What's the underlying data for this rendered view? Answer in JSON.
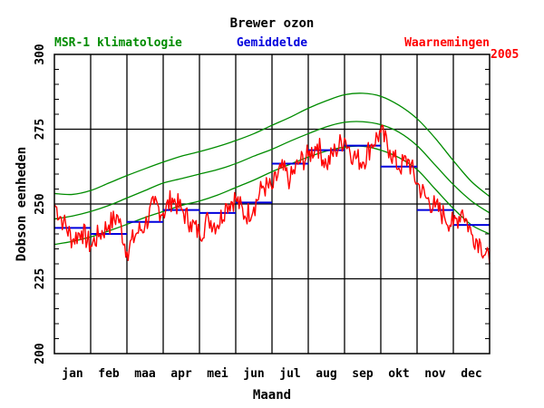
{
  "chart_data": {
    "type": "line",
    "title": "Brewer ozon",
    "year_label": "2005",
    "xlabel": "Maand",
    "ylabel": "Dobson eenheden",
    "ylim": [
      200,
      300
    ],
    "xlim": [
      0,
      12
    ],
    "x_unit": "month (0 = 1 Jan, 12 = 31 Dec)",
    "yticks": [
      200,
      225,
      250,
      275,
      300
    ],
    "month_labels": [
      "jan",
      "feb",
      "maa",
      "apr",
      "mei",
      "jun",
      "jul",
      "aug",
      "sep",
      "okt",
      "nov",
      "dec"
    ],
    "grid": true,
    "legend": [
      {
        "key": "clim",
        "label": "MSR-1 klimatologie",
        "color": "#008c00",
        "position": "top-left"
      },
      {
        "key": "mean",
        "label": "Gemiddelde",
        "color": "#0000dd",
        "position": "top-center"
      },
      {
        "key": "obs",
        "label": "Waarnemingen",
        "color": "#ff0000",
        "position": "top-right"
      }
    ],
    "series": [
      {
        "name": "MSR-1 klimatologie",
        "role": "upper",
        "color": "#008c00",
        "x": [
          0,
          0.5,
          1,
          1.5,
          2,
          2.5,
          3,
          3.5,
          4,
          4.5,
          5,
          5.5,
          6,
          6.5,
          7,
          7.5,
          8,
          8.5,
          9,
          9.5,
          10,
          10.5,
          11,
          11.5,
          12
        ],
        "y": [
          253.5,
          253.2,
          254.5,
          257,
          259.5,
          261.8,
          264,
          266,
          267.5,
          269.2,
          271.2,
          273.5,
          276.3,
          279,
          282,
          284.5,
          286.5,
          287,
          286,
          283,
          278.5,
          272,
          264.5,
          257.5,
          252.5
        ]
      },
      {
        "name": "MSR-1 klimatologie",
        "role": "middle",
        "color": "#008c00",
        "x": [
          0,
          0.5,
          1,
          1.5,
          2,
          2.5,
          3,
          3.5,
          4,
          4.5,
          5,
          5.5,
          6,
          6.5,
          7,
          7.5,
          8,
          8.5,
          9,
          9.5,
          10,
          10.5,
          11,
          11.5,
          12
        ],
        "y": [
          245,
          246,
          247.5,
          249.5,
          252,
          254.5,
          257,
          258.5,
          260,
          261.5,
          263.5,
          266,
          268.3,
          271,
          273.5,
          275.8,
          277.3,
          277.5,
          276.5,
          274,
          269.5,
          263,
          256.5,
          251,
          247
        ]
      },
      {
        "name": "MSR-1 klimatologie",
        "role": "lower",
        "color": "#008c00",
        "x": [
          0,
          0.5,
          1,
          1.5,
          2,
          2.5,
          3,
          3.5,
          4,
          4.5,
          5,
          5.5,
          6,
          6.5,
          7,
          7.5,
          8,
          8.5,
          9,
          9.5,
          10,
          10.5,
          11,
          11.5,
          12
        ],
        "y": [
          236.5,
          237.5,
          239,
          241,
          243.2,
          245.5,
          247.5,
          249.5,
          251,
          253,
          255.5,
          258,
          260.8,
          263.3,
          265.7,
          267.7,
          269,
          269.3,
          268,
          265.5,
          261.5,
          255,
          248.5,
          243,
          240
        ]
      },
      {
        "name": "Gemiddelde",
        "role": "monthly-mean",
        "color": "#0000dd",
        "months": [
          1,
          2,
          3,
          4,
          5,
          6,
          7,
          8,
          9,
          10,
          11,
          12
        ],
        "values": [
          242,
          240,
          244,
          248,
          247,
          250.5,
          263.5,
          268,
          269.5,
          262.5,
          248,
          243
        ]
      },
      {
        "name": "Waarnemingen",
        "role": "daily-observations",
        "color": "#ff0000",
        "x": [
          0,
          0.25,
          0.5,
          0.75,
          1,
          1.25,
          1.5,
          1.75,
          2,
          2.25,
          2.5,
          2.75,
          3,
          3.25,
          3.5,
          3.75,
          4,
          4.25,
          4.5,
          4.75,
          5,
          5.25,
          5.5,
          5.75,
          6,
          6.25,
          6.5,
          6.75,
          7,
          7.25,
          7.5,
          7.75,
          8,
          8.25,
          8.5,
          8.75,
          9,
          9.25,
          9.5,
          9.75,
          10,
          10.25,
          10.5,
          10.75,
          11,
          11.25,
          11.5,
          11.75,
          12
        ],
        "y": [
          250,
          244,
          238,
          241,
          236,
          240,
          243,
          246,
          234,
          240,
          243,
          250,
          247,
          252,
          248,
          244,
          240,
          245,
          243,
          250,
          252,
          246,
          249,
          256,
          255,
          262,
          258,
          264,
          266,
          270,
          263,
          268,
          272,
          266,
          264,
          270,
          274,
          268,
          262,
          265,
          257,
          252,
          249,
          246,
          243,
          248,
          240,
          237,
          230
        ]
      }
    ]
  }
}
